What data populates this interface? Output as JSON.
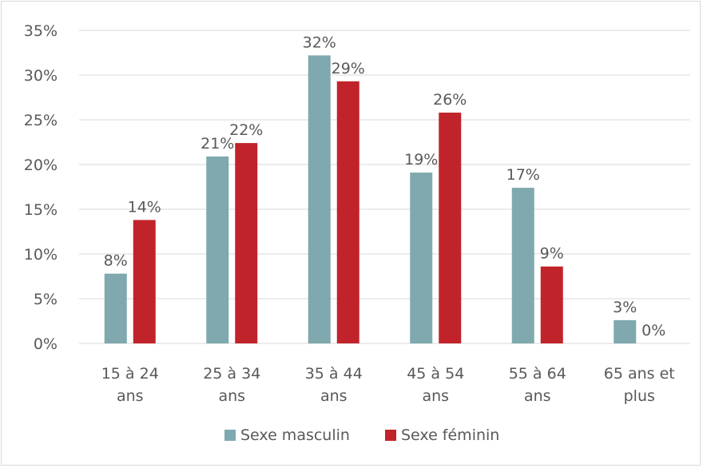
{
  "chart_data": {
    "type": "bar",
    "categories": [
      [
        "15 à 24",
        "ans"
      ],
      [
        "25 à 34",
        "ans"
      ],
      [
        "35 à 44",
        "ans"
      ],
      [
        "45 à 54",
        "ans"
      ],
      [
        "55 à 64",
        "ans"
      ],
      [
        "65 ans et",
        "plus"
      ]
    ],
    "series": [
      {
        "name": "Sexe masculin",
        "color": "#7fa9ae",
        "values": [
          7.8,
          20.9,
          32.2,
          19.1,
          17.4,
          2.6
        ],
        "labels": [
          "8%",
          "21%",
          "32%",
          "19%",
          "17%",
          "3%"
        ]
      },
      {
        "name": "Sexe féminin",
        "color": "#c1232b",
        "values": [
          13.8,
          22.4,
          29.3,
          25.8,
          8.6,
          0
        ],
        "labels": [
          "14%",
          "22%",
          "29%",
          "26%",
          "9%",
          "0%"
        ]
      }
    ],
    "yticks": [
      "0%",
      "5%",
      "10%",
      "15%",
      "20%",
      "25%",
      "30%",
      "35%"
    ],
    "ylim": [
      0,
      35
    ],
    "grid": true,
    "legend": "bottom",
    "title": "",
    "xlabel": "",
    "ylabel": ""
  }
}
